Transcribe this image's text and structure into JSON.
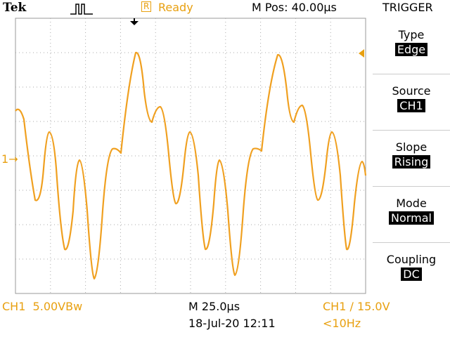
{
  "header": {
    "logo": "Tek",
    "status_icon": "R",
    "status": "Ready",
    "position": "M Pos: 40.00µs"
  },
  "menu": {
    "title": "TRIGGER",
    "items": [
      {
        "label": "Type",
        "value": "Edge"
      },
      {
        "label": "Source",
        "value": "CH1"
      },
      {
        "label": "Slope",
        "value": "Rising"
      },
      {
        "label": "Mode",
        "value": "Normal"
      },
      {
        "label": "Coupling",
        "value": "DC"
      }
    ]
  },
  "channel_marker": "1",
  "footer": {
    "channel_scale": "CH1  5.00VBw",
    "timebase": "M 25.0µs",
    "datetime": "18-Jul-20 12:11",
    "trigger_level": "CH1 ∕ 15.0V",
    "frequency": "<10Hz"
  }
}
